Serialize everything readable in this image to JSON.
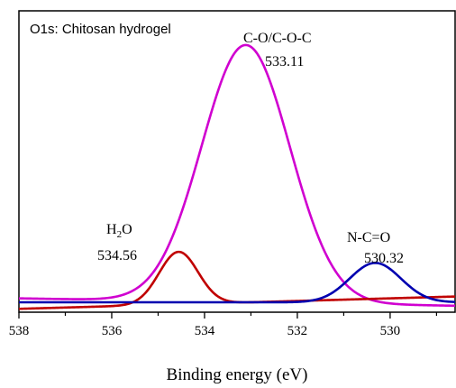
{
  "chart_data": {
    "type": "line",
    "title": "O1s: Chitosan hydrogel",
    "xlabel": "Binding energy (eV)",
    "ylabel": "",
    "xlim": [
      538,
      528.6
    ],
    "x_reversed": true,
    "ylim": [
      0,
      1.07
    ],
    "x_ticks": [
      538,
      536,
      534,
      532,
      530
    ],
    "y_ticks_shown": false,
    "grid": false,
    "legend": "none",
    "series": [
      {
        "peak": "C-O/C-O-C",
        "color": "#d000d0",
        "center": 533.11,
        "height": 0.98,
        "sigma": 0.95,
        "baseline_tilt": 0.003
      },
      {
        "peak": "H2O",
        "color": "#c00000",
        "center": 534.56,
        "height": 0.2,
        "sigma": 0.42,
        "baseline_tilt": -0.005
      },
      {
        "peak": "N-C=O",
        "color": "#0000b0",
        "center": 530.32,
        "height": 0.15,
        "sigma": 0.55,
        "baseline_tilt": 0.0
      }
    ],
    "annotations": [
      {
        "id": "co",
        "line1": "C-O/C-O-C",
        "line2": "533.11"
      },
      {
        "id": "h2o",
        "line1_main": "H",
        "line1_sub": "2",
        "line1_tail": "O",
        "line2": "534.56"
      },
      {
        "id": "nco",
        "line1": "N-C=O",
        "line2": "530.32"
      }
    ]
  }
}
